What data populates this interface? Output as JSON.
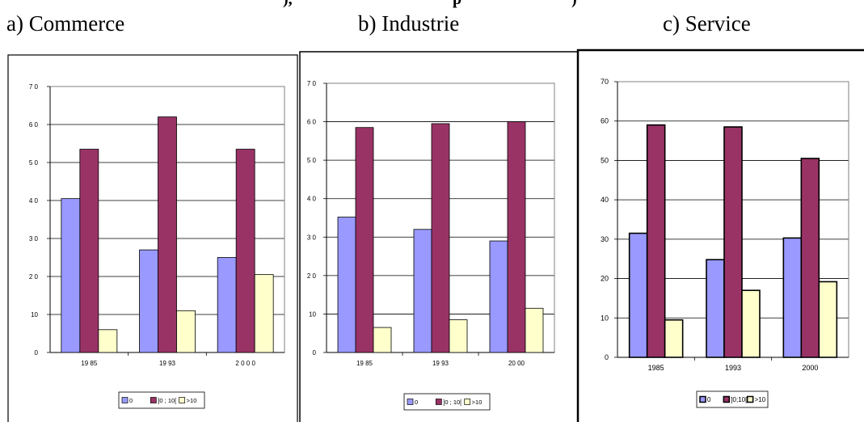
{
  "header_fragments": [
    "), ",
    "p",
    ")"
  ],
  "captions": [
    "a) Commerce",
    "b) Industrie",
    "c) Service"
  ],
  "colors": {
    "s0": "#9999ff",
    "s1": "#993366",
    "s2": "#ffffcc",
    "grid": "#000000"
  },
  "chart_data": [
    {
      "type": "bar",
      "title": "a) Commerce",
      "categories": [
        "19 85",
        "19 93",
        "2 0 0 0"
      ],
      "series": [
        {
          "name": "0",
          "values": [
            40.5,
            27,
            25
          ]
        },
        {
          "name": "]0 ; 10[",
          "values": [
            53.5,
            62,
            53.5
          ]
        },
        {
          "name": ">10",
          "values": [
            6,
            11,
            20.5
          ]
        }
      ],
      "ylim": [
        0,
        70
      ],
      "yticks": [
        "0",
        "10",
        "2 0",
        "3 0",
        "4 0",
        "5 0",
        "6 0",
        "7 0"
      ],
      "grid": true,
      "legend": "bottom"
    },
    {
      "type": "bar",
      "title": "b) Industrie",
      "categories": [
        "19 85",
        "19 93",
        "20 00"
      ],
      "series": [
        {
          "name": "0",
          "values": [
            35.2,
            32,
            29
          ]
        },
        {
          "name": "]0 ; 10[",
          "values": [
            58.5,
            59.5,
            60
          ]
        },
        {
          "name": ">10",
          "values": [
            6.5,
            8.5,
            11.5
          ]
        }
      ],
      "ylim": [
        0,
        70
      ],
      "yticks": [
        "0",
        "10",
        "2 0",
        "3 0",
        "4 0",
        "5 0",
        "6 0",
        "7 0"
      ],
      "grid": true,
      "legend": "bottom"
    },
    {
      "type": "bar",
      "title": "c) Service",
      "categories": [
        "1985",
        "1993",
        "2000"
      ],
      "series": [
        {
          "name": "0",
          "values": [
            31.5,
            24.8,
            30.3
          ]
        },
        {
          "name": "]0;10[",
          "values": [
            59,
            58.5,
            50.5
          ]
        },
        {
          "name": ">10",
          "values": [
            9.5,
            17,
            19.2
          ]
        }
      ],
      "ylim": [
        0,
        70
      ],
      "yticks": [
        "0",
        "10",
        "20",
        "30",
        "40",
        "50",
        "60",
        "70"
      ],
      "grid": true,
      "legend": "bottom"
    }
  ]
}
